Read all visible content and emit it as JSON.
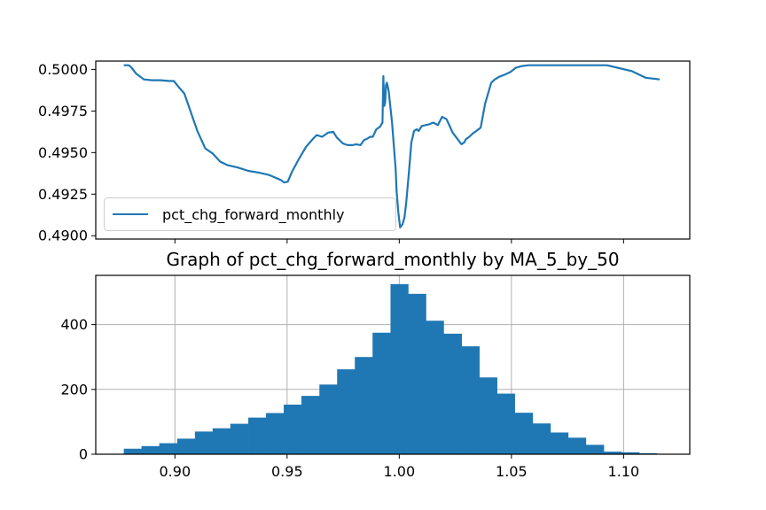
{
  "chart_data": [
    {
      "type": "line",
      "title": "",
      "xlabel": "",
      "ylabel": "",
      "ylim": [
        0.4898,
        0.5005
      ],
      "yticks": [
        0.49,
        0.4925,
        0.495,
        0.4975,
        0.5
      ],
      "ytick_labels": [
        "0.4900",
        "0.4925",
        "0.4950",
        "0.4975",
        "0.5000"
      ],
      "xlim": [
        0.8647,
        1.1295
      ],
      "xticks": [
        0.9,
        0.95,
        1.0,
        1.05,
        1.1
      ],
      "x_ticklabels_shown": false,
      "grid": false,
      "legend": {
        "placement": "lower-left",
        "entries": [
          "pct_chg_forward_monthly"
        ]
      },
      "color": "#1f77b4",
      "series": [
        {
          "name": "pct_chg_forward_monthly",
          "x": [
            0.8772,
            0.8794,
            0.8804,
            0.8827,
            0.8862,
            0.8897,
            0.8936,
            0.8975,
            0.8995,
            0.9016,
            0.9042,
            0.9065,
            0.91,
            0.9135,
            0.9168,
            0.9202,
            0.9233,
            0.928,
            0.9327,
            0.9374,
            0.9421,
            0.9472,
            0.9487,
            0.9503,
            0.9522,
            0.9554,
            0.9585,
            0.9617,
            0.9632,
            0.9656,
            0.9683,
            0.9706,
            0.9722,
            0.9749,
            0.9769,
            0.9792,
            0.9808,
            0.9827,
            0.9843,
            0.9859,
            0.987,
            0.9882,
            0.9898,
            0.9914,
            0.9925,
            0.9929,
            0.9933,
            0.9937,
            0.9941,
            0.9945,
            0.9953,
            0.9968,
            0.9984,
            0.9988,
            0.9996,
            1.0004,
            1.0015,
            1.0023,
            1.0031,
            1.0043,
            1.0054,
            1.0066,
            1.0078,
            1.0086,
            1.0101,
            1.0117,
            1.0133,
            1.0152,
            1.0172,
            1.0191,
            1.0211,
            1.0238,
            1.0258,
            1.0277,
            1.0289,
            1.0297,
            1.0312,
            1.0328,
            1.0344,
            1.0363,
            1.0383,
            1.041,
            1.0426,
            1.0445,
            1.0473,
            1.0496,
            1.052,
            1.0547,
            1.0575,
            1.0606,
            1.0637,
            1.068,
            1.0734,
            1.0793,
            1.0852,
            1.0926,
            1.0973,
            1.1036,
            1.1098,
            1.1161
          ],
          "y": [
            0.50025,
            0.50025,
            0.50015,
            0.49975,
            0.4994,
            0.49935,
            0.49935,
            0.4993,
            0.4993,
            0.49895,
            0.49855,
            0.49765,
            0.4963,
            0.49525,
            0.49495,
            0.49445,
            0.49425,
            0.4941,
            0.4939,
            0.4938,
            0.49365,
            0.49335,
            0.4932,
            0.49325,
            0.49385,
            0.49465,
            0.49535,
            0.49585,
            0.49605,
            0.49595,
            0.4962,
            0.49625,
            0.4959,
            0.49555,
            0.49545,
            0.49545,
            0.4955,
            0.49545,
            0.49575,
            0.49585,
            0.49595,
            0.49595,
            0.4964,
            0.49655,
            0.4968,
            0.4996,
            0.4978,
            0.498,
            0.49905,
            0.4992,
            0.4987,
            0.4968,
            0.494,
            0.4927,
            0.4914,
            0.4905,
            0.4907,
            0.4911,
            0.492,
            0.4938,
            0.4956,
            0.4963,
            0.4964,
            0.4963,
            0.4966,
            0.49665,
            0.4967,
            0.4968,
            0.49665,
            0.49715,
            0.497,
            0.4962,
            0.49585,
            0.4955,
            0.4956,
            0.4958,
            0.49595,
            0.49615,
            0.4963,
            0.4965,
            0.49795,
            0.4992,
            0.4994,
            0.49955,
            0.4997,
            0.49985,
            0.5001,
            0.5002,
            0.50025,
            0.50025,
            0.50025,
            0.50025,
            0.50025,
            0.50025,
            0.50025,
            0.50025,
            0.5001,
            0.4999,
            0.4995,
            0.4994
          ]
        }
      ]
    },
    {
      "type": "bar",
      "title": "Graph of pct_chg_forward_monthly by MA_5_by_50",
      "xlabel": "",
      "ylabel": "",
      "xlim": [
        0.8647,
        1.1295
      ],
      "ylim": [
        0,
        552
      ],
      "xticks": [
        0.9,
        0.95,
        1.0,
        1.05,
        1.1
      ],
      "xtick_labels": [
        "0.90",
        "0.95",
        "1.00",
        "1.05",
        "1.10"
      ],
      "yticks": [
        0,
        200,
        400
      ],
      "ytick_labels": [
        "0",
        "200",
        "400"
      ],
      "grid": true,
      "color": "#1f77b4",
      "bin_edges": [
        0.8772,
        0.8851,
        0.893,
        0.901,
        0.9089,
        0.9168,
        0.9247,
        0.9327,
        0.9406,
        0.9485,
        0.9564,
        0.9644,
        0.9723,
        0.9802,
        0.9881,
        0.9961,
        1.004,
        1.0119,
        1.0198,
        1.0278,
        1.0357,
        1.0436,
        1.0515,
        1.0595,
        1.0674,
        1.0753,
        1.0832,
        1.0912,
        1.0991,
        1.107,
        1.1149
      ],
      "values": [
        17,
        25,
        34,
        48,
        70,
        80,
        94,
        113,
        127,
        153,
        180,
        215,
        262,
        300,
        375,
        525,
        495,
        412,
        372,
        333,
        237,
        187,
        128,
        95,
        67,
        51,
        29,
        8,
        6,
        3
      ]
    }
  ]
}
